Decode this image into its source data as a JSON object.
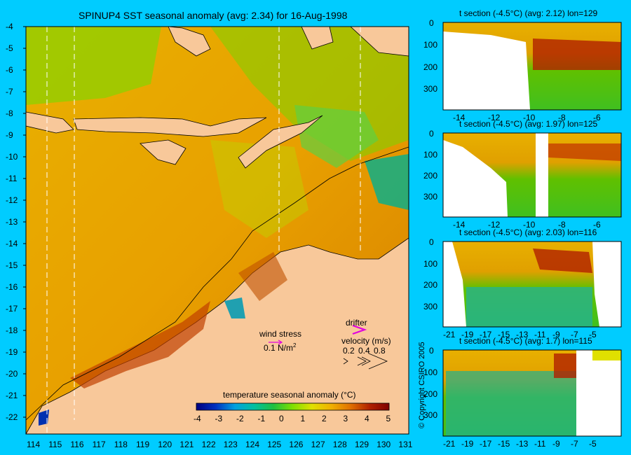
{
  "map": {
    "title": "SPINUP4 SST seasonal anomaly (avg: 2.34) for 16-Aug-1998",
    "lat_labels": [
      "-4",
      "-5",
      "-6",
      "-7",
      "-8",
      "-9",
      "-10",
      "-11",
      "-12",
      "-13",
      "-14",
      "-15",
      "-16",
      "-17",
      "-18",
      "-19",
      "-20",
      "-21",
      "-22"
    ],
    "lon_labels": [
      "114",
      "115",
      "116",
      "117",
      "118",
      "119",
      "120",
      "121",
      "122",
      "123",
      "124",
      "125",
      "126",
      "127",
      "128",
      "129",
      "130",
      "131"
    ]
  },
  "legend": {
    "wind_label": "wind stress",
    "wind_scale": "0.1 N/m",
    "wind_scale_sup": "2",
    "drifter_label": "drifter",
    "velocity_label": "velocity (m/s)",
    "velocity_values": [
      "0.2",
      "0.4",
      "0.8"
    ]
  },
  "colorbar": {
    "title": "temperature seasonal anomaly (°C)",
    "ticks": [
      "-4",
      "-3",
      "-2",
      "-1",
      "0",
      "1",
      "2",
      "3",
      "4",
      "5"
    ],
    "colors": [
      "#000080",
      "#0030c0",
      "#00a0e0",
      "#00c0a0",
      "#20c040",
      "#80e000",
      "#e0e000",
      "#f0a000",
      "#e06000",
      "#b02000",
      "#800000"
    ]
  },
  "sections": [
    {
      "title": "t section (-4.5°C) (avg: 2.12) lon=129",
      "x_ticks": [
        "-14",
        "-12",
        "-10",
        "-8",
        "-6"
      ],
      "y_ticks": [
        "0",
        "100",
        "200",
        "300"
      ]
    },
    {
      "title": "t section (-4.5°C) (avg: 1.97) lon=125",
      "x_ticks": [
        "-14",
        "-12",
        "-10",
        "-8",
        "-6"
      ],
      "y_ticks": [
        "0",
        "100",
        "200",
        "300"
      ]
    },
    {
      "title": "t section (-4.5°C) (avg: 2.03) lon=116",
      "x_ticks": [
        "-21",
        "-19",
        "-17",
        "-15",
        "-13",
        "-11",
        "-9",
        "-7",
        "-5"
      ],
      "y_ticks": [
        "0",
        "100",
        "200",
        "300"
      ]
    },
    {
      "title": "t section (-4.5°C) (avg: 1.7) lon=115",
      "x_ticks": [
        "-21",
        "-19",
        "-17",
        "-15",
        "-13",
        "-11",
        "-9",
        "-7",
        "-5"
      ],
      "y_ticks": [
        "0",
        "100",
        "200",
        "300"
      ]
    }
  ],
  "copyright": "© Copyright CSIRO 2005"
}
